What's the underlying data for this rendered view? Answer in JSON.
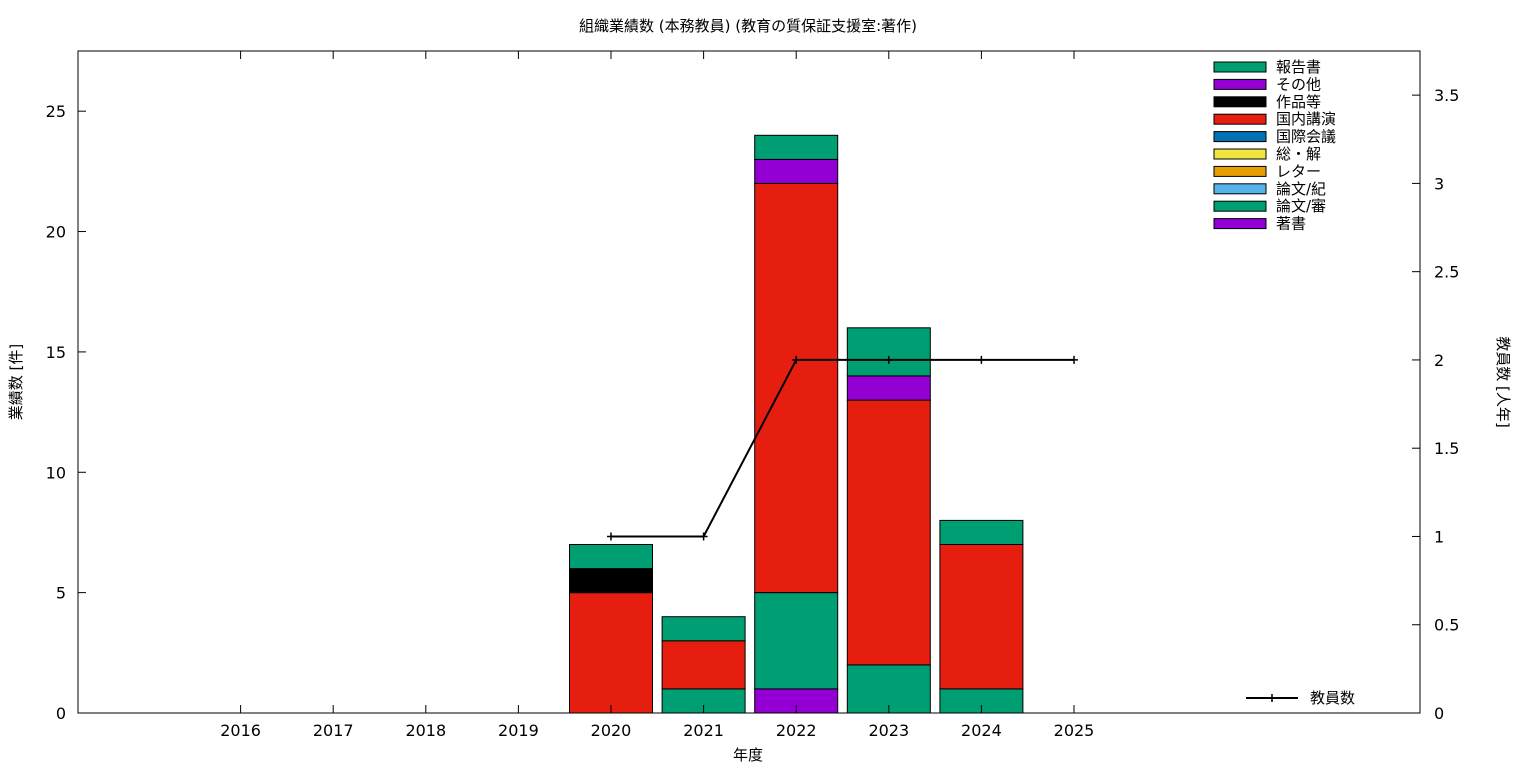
{
  "chart_data": {
    "type": "bar",
    "stacked": true,
    "title": "組織業績数 (本務教員) (教育の質保証支援室:著作)",
    "xlabel": "年度",
    "ylabel": "業績数 [件]",
    "y2label": "教員数 [人年]",
    "categories": [
      "2016",
      "2017",
      "2018",
      "2019",
      "2020",
      "2021",
      "2022",
      "2023",
      "2024",
      "2025"
    ],
    "ylim": [
      0,
      27.5
    ],
    "yticks": [
      "0",
      "5",
      "10",
      "15",
      "20",
      "25"
    ],
    "y2lim": [
      0,
      3.75
    ],
    "y2ticks": [
      "0",
      "0.5",
      "1",
      "1.5",
      "2",
      "2.5",
      "3",
      "3.5"
    ],
    "grid": false,
    "legend_position": "top-right",
    "series": [
      {
        "name": "著書",
        "color": "#9400d3",
        "values": [
          0,
          0,
          0,
          0,
          0,
          0,
          1,
          0,
          0,
          0
        ]
      },
      {
        "name": "論文/審",
        "color": "#009e73",
        "values": [
          0,
          0,
          0,
          0,
          0,
          1,
          4,
          2,
          1,
          0
        ]
      },
      {
        "name": "論文/紀",
        "color": "#56b4e9",
        "values": [
          0,
          0,
          0,
          0,
          0,
          0,
          0,
          0,
          0,
          0
        ]
      },
      {
        "name": "レター",
        "color": "#e69f00",
        "values": [
          0,
          0,
          0,
          0,
          0,
          0,
          0,
          0,
          0,
          0
        ]
      },
      {
        "name": "総・解",
        "color": "#f0e442",
        "values": [
          0,
          0,
          0,
          0,
          0,
          0,
          0,
          0,
          0,
          0
        ]
      },
      {
        "name": "国際会議",
        "color": "#0072b2",
        "values": [
          0,
          0,
          0,
          0,
          0,
          0,
          0,
          0,
          0,
          0
        ]
      },
      {
        "name": "国内講演",
        "color": "#e51e10",
        "values": [
          0,
          0,
          0,
          0,
          5,
          2,
          17,
          11,
          6,
          0
        ]
      },
      {
        "name": "作品等",
        "color": "#000000",
        "values": [
          0,
          0,
          0,
          0,
          1,
          0,
          0,
          0,
          0,
          0
        ]
      },
      {
        "name": "その他",
        "color": "#9400d3",
        "values": [
          0,
          0,
          0,
          0,
          0,
          0,
          1,
          1,
          0,
          0
        ]
      },
      {
        "name": "報告書",
        "color": "#009e73",
        "values": [
          0,
          0,
          0,
          0,
          1,
          1,
          1,
          2,
          1,
          0
        ]
      }
    ],
    "line_series": {
      "name": "教員数",
      "color": "#000000",
      "x": [
        "2020",
        "2021",
        "2022",
        "2023",
        "2024",
        "2025"
      ],
      "values": [
        1,
        1,
        2,
        2,
        2,
        2
      ]
    }
  }
}
